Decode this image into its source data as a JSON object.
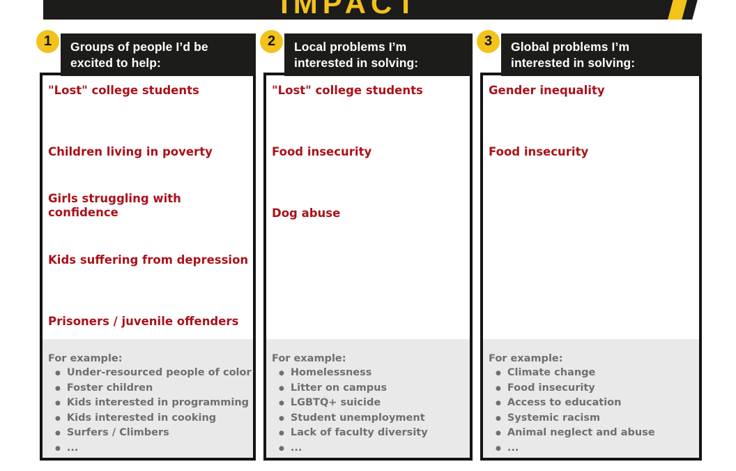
{
  "banner": {
    "title": "IMPACT"
  },
  "colors": {
    "accent_yellow": "#f3c21b",
    "ink_black": "#1c1c1a",
    "entry_red": "#a9121b",
    "example_gray": "#6f6f6f",
    "panel_gray": "#e9e9e9"
  },
  "columns": [
    {
      "number": "1",
      "title_line1": "Groups of people I’d be",
      "title_line2": "excited to help:",
      "entries": [
        "\"Lost\" college students",
        "Children living in poverty",
        "Girls struggling with confidence",
        "Kids suffering from depression",
        "Prisoners / juvenile offenders"
      ],
      "examples_label": "For example:",
      "examples": [
        "Under-resourced people of color",
        "Foster children",
        "Kids interested in programming",
        "Kids interested in cooking",
        "Surfers / Climbers",
        "..."
      ]
    },
    {
      "number": "2",
      "title_line1": "Local problems I’m",
      "title_line2": "interested in solving:",
      "entries": [
        "\"Lost\" college students",
        "Food insecurity",
        "Dog abuse"
      ],
      "examples_label": "For example:",
      "examples": [
        "Homelessness",
        "Litter on campus",
        "LGBTQ+ suicide",
        "Student unemployment",
        "Lack of faculty diversity",
        "..."
      ]
    },
    {
      "number": "3",
      "title_line1": "Global problems I’m",
      "title_line2": "interested in solving:",
      "entries": [
        "Gender inequality",
        "Food insecurity"
      ],
      "examples_label": "For example:",
      "examples": [
        "Climate change",
        "Food insecurity",
        "Access to education",
        "Systemic racism",
        "Animal neglect and abuse",
        "..."
      ]
    }
  ]
}
